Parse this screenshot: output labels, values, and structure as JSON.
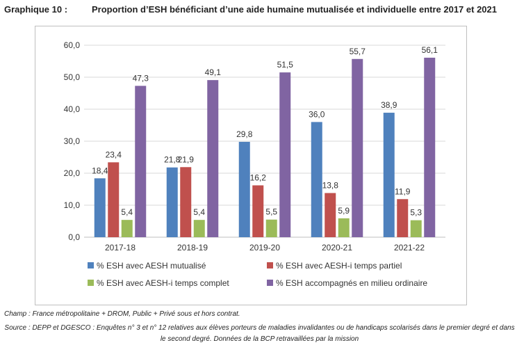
{
  "figure": {
    "label": "Graphique 10 :",
    "title": "Proportion d’ESH bénéficiant d’une aide humaine mutualisée et individuelle entre 2017 et 2021"
  },
  "notes": {
    "scope": "Champ : France métropolitaine + DROM, Public + Privé sous et hors contrat.",
    "source": "Source : DEPP et DGESCO : Enquêtes n° 3 et n° 12 relatives aux élèves porteurs de maladies invalidantes ou de handicaps scolarisés dans le premier degré et dans le second degré. Données de la BCP retravaillées par la mission"
  },
  "chart_data": {
    "type": "bar",
    "categories": [
      "2017-18",
      "2018-19",
      "2019-20",
      "2020-21",
      "2021-22"
    ],
    "ylim": [
      0,
      60
    ],
    "yticks": [
      "0,0",
      "10,0",
      "20,0",
      "30,0",
      "40,0",
      "50,0",
      "60,0"
    ],
    "grid": true,
    "legend_position": "bottom",
    "series": [
      {
        "name": "% ESH avec AESH mutualisé",
        "color": "#4F81BD",
        "values": [
          18.4,
          21.8,
          29.8,
          36.0,
          38.9
        ],
        "labels": [
          "18,4",
          "21,8",
          "29,8",
          "36,0",
          "38,9"
        ]
      },
      {
        "name": "% ESH avec AESH-i temps partiel",
        "color": "#C0504D",
        "values": [
          23.4,
          21.9,
          16.2,
          13.8,
          11.9
        ],
        "labels": [
          "23,4",
          "21,9",
          "16,2",
          "13,8",
          "11,9"
        ]
      },
      {
        "name": "% ESH avec AESH-i temps complet",
        "color": "#9BBB59",
        "values": [
          5.4,
          5.4,
          5.5,
          5.9,
          5.3
        ],
        "labels": [
          "5,4",
          "5,4",
          "5,5",
          "5,9",
          "5,3"
        ]
      },
      {
        "name": "% ESH accompagnés en milieu ordinaire",
        "color": "#8064A2",
        "values": [
          47.3,
          49.1,
          51.5,
          55.7,
          56.1
        ],
        "labels": [
          "47,3",
          "49,1",
          "51,5",
          "55,7",
          "56,1"
        ]
      }
    ]
  }
}
